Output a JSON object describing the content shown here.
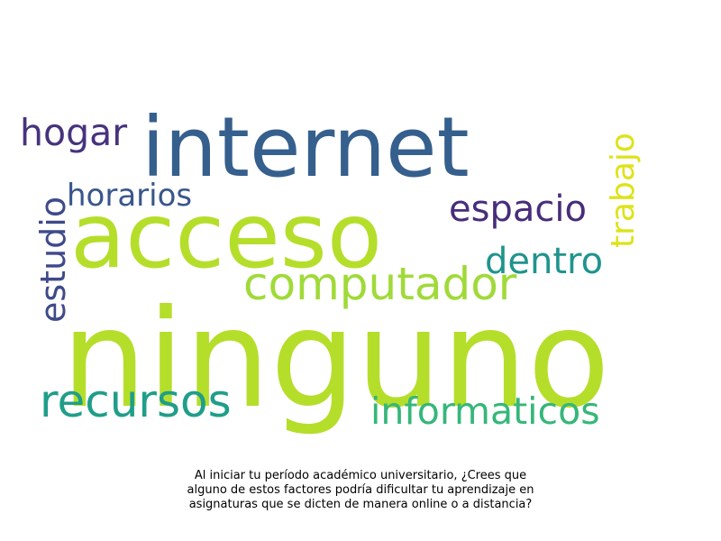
{
  "words": [
    {
      "key": "ninguno",
      "text": "ninguno",
      "color": "#b5de2b"
    },
    {
      "key": "acceso",
      "text": "acceso",
      "color": "#b5de2b"
    },
    {
      "key": "internet",
      "text": "internet",
      "color": "#355f8d"
    },
    {
      "key": "computador",
      "text": "computador",
      "color": "#a0da39"
    },
    {
      "key": "recursos",
      "text": "recursos",
      "color": "#1f9e89"
    },
    {
      "key": "informaticos",
      "text": "informaticos",
      "color": "#35b779"
    },
    {
      "key": "hogar",
      "text": "hogar",
      "color": "#46337e"
    },
    {
      "key": "horarios",
      "text": "horarios",
      "color": "#39568c"
    },
    {
      "key": "espacio",
      "text": "espacio",
      "color": "#472d7b"
    },
    {
      "key": "dentro",
      "text": "dentro",
      "color": "#1f948c"
    },
    {
      "key": "estudio",
      "text": "estudio",
      "color": "#3e4a89"
    },
    {
      "key": "trabajo",
      "text": "trabajo",
      "color": "#dde318"
    }
  ],
  "caption": {
    "line1": "Al iniciar tu período académico universitario, ¿Crees que",
    "line2": "alguno de estos factores podría dificultar tu aprendizaje en",
    "line3": "asignaturas que se dicten de manera online o a distancia?"
  }
}
